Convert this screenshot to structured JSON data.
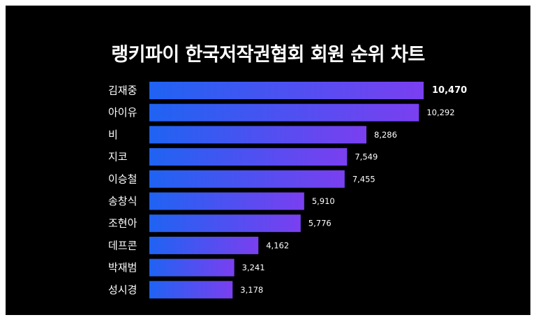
{
  "chart_data": {
    "type": "bar",
    "orientation": "horizontal",
    "title": "랭키파이 한국저작권협회 회원 순위 차트",
    "categories": [
      "김재중",
      "아이유",
      "비",
      "지코",
      "이승철",
      "송창식",
      "조현아",
      "데프콘",
      "박재범",
      "성시경"
    ],
    "values": [
      10470,
      10292,
      8286,
      7549,
      7455,
      5910,
      5776,
      4162,
      3241,
      3178
    ],
    "value_labels": [
      "10,470",
      "10,292",
      "8,286",
      "7,549",
      "7,455",
      "5,910",
      "5,776",
      "4,162",
      "3,241",
      "3,178"
    ],
    "xlabel": "",
    "ylabel": "",
    "grid": false,
    "legend": "none"
  },
  "colors": {
    "background": "#000000",
    "text": "#ffffff",
    "bar_gradient_start": "#1f63f2",
    "bar_gradient_end": "#7a3ff0"
  }
}
